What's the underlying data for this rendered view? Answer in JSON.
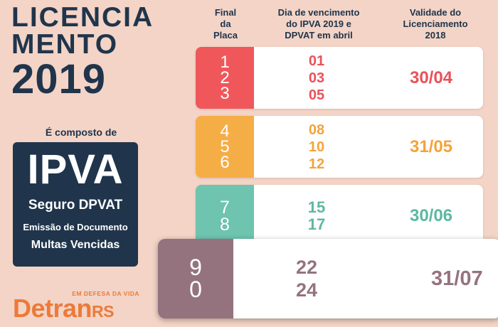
{
  "title": {
    "line1": "LICENCIA",
    "line2": "MENTO",
    "year": "2019"
  },
  "composto": "É composto de",
  "ipva_box": {
    "ipva": "IPVA",
    "seguro": "Seguro DPVAT",
    "emissao": "Emissão de Documento",
    "multas": "Multas Vencidas",
    "color": "#20354c"
  },
  "detran": {
    "slogan": "EM DEFESA DA VIDA",
    "name": "Detran",
    "state": "RS",
    "color": "#ec7a3a"
  },
  "headers": {
    "final": [
      "Final",
      "da",
      "Placa"
    ],
    "dia": [
      "Dia de vencimento",
      "do IPVA 2019 e",
      "DPVAT em abril"
    ],
    "validade": [
      "Validade do",
      "Licenciamento",
      "2018"
    ]
  },
  "rows": [
    {
      "plates": [
        "1",
        "2",
        "3"
      ],
      "days": [
        "01",
        "03",
        "05"
      ],
      "validity": "30/04",
      "color": "#f0575b"
    },
    {
      "plates": [
        "4",
        "5",
        "6"
      ],
      "days": [
        "08",
        "10",
        "12"
      ],
      "validity": "31/05",
      "color": "#f5ad46"
    },
    {
      "plates": [
        "7",
        "8"
      ],
      "days": [
        "15",
        "17"
      ],
      "validity": "30/06",
      "color": "#6ec4ae"
    },
    {
      "plates": [
        "9",
        "0"
      ],
      "days": [
        "22",
        "24"
      ],
      "validity": "31/07",
      "color": "#94737f"
    }
  ]
}
